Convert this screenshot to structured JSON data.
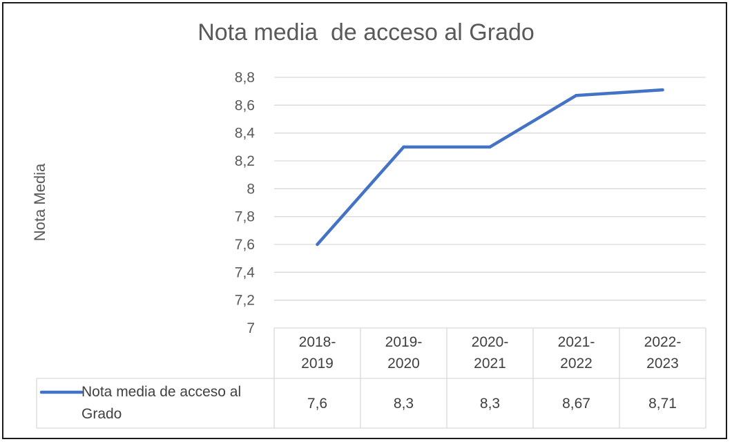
{
  "chart_data": {
    "type": "line",
    "title": "Nota media  de acceso al Grado",
    "ylabel": "Nota Media",
    "xlabel": "",
    "categories": [
      [
        "2018-",
        "2019"
      ],
      [
        "2019-",
        "2020"
      ],
      [
        "2020-",
        "2021"
      ],
      [
        "2021-",
        "2022"
      ],
      [
        "2022-",
        "2023"
      ]
    ],
    "yticks": [
      "8,8",
      "8,6",
      "8,4",
      "8,2",
      "8",
      "7,8",
      "7,6",
      "7,4",
      "7,2",
      "7"
    ],
    "ylim": [
      7,
      8.8
    ],
    "grid": true,
    "legend": "data-table",
    "series": [
      {
        "name": "Nota media  de acceso al Grado",
        "values": [
          7.6,
          8.3,
          8.3,
          8.67,
          8.71
        ],
        "labels": [
          "7,6",
          "8,3",
          "8,3",
          "8,67",
          "8,71"
        ],
        "color": "#4472C4"
      }
    ]
  }
}
